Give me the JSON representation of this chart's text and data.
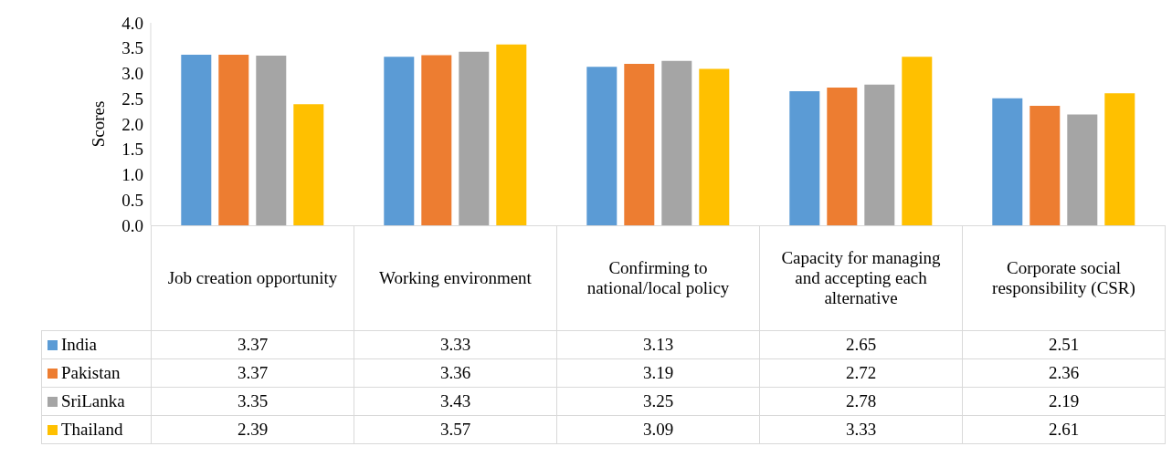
{
  "chart_data": {
    "type": "bar",
    "ylabel": "Scores",
    "categories": [
      "Job creation opportunity",
      "Working environment",
      "Confirming to national/local policy",
      "Capacity for managing and accepting each alternative",
      "Corporate social responsibility (CSR)"
    ],
    "series": [
      {
        "name": "India",
        "color": "#5b9bd5",
        "values": [
          3.37,
          3.33,
          3.13,
          2.65,
          2.51
        ]
      },
      {
        "name": "Pakistan",
        "color": "#ed7d31",
        "values": [
          3.37,
          3.36,
          3.19,
          2.72,
          2.36
        ]
      },
      {
        "name": "SriLanka",
        "color": "#a5a5a5",
        "values": [
          3.35,
          3.43,
          3.25,
          2.78,
          2.19
        ]
      },
      {
        "name": "Thailand",
        "color": "#ffc000",
        "values": [
          2.39,
          3.57,
          3.09,
          3.33,
          2.61
        ]
      }
    ],
    "ylim": [
      0,
      4
    ],
    "yticks": [
      {
        "value": 0,
        "label": "0.0"
      },
      {
        "value": 0.5,
        "label": "0.5"
      },
      {
        "value": 1,
        "label": "1.0"
      },
      {
        "value": 1.5,
        "label": "1.5"
      },
      {
        "value": 2,
        "label": "2.0"
      },
      {
        "value": 2.5,
        "label": "2.5"
      },
      {
        "value": 3,
        "label": "3.0"
      },
      {
        "value": 3.5,
        "label": "3.5"
      },
      {
        "value": 4,
        "label": "4.0"
      }
    ],
    "grid": false,
    "legend": "bottom",
    "data_labels": true
  }
}
